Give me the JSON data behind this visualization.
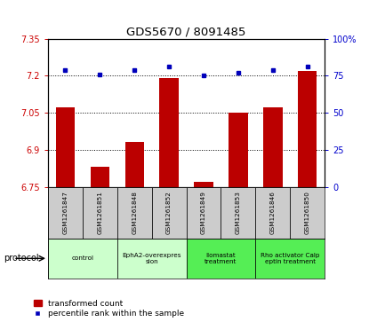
{
  "title": "GDS5670 / 8091485",
  "samples": [
    "GSM1261847",
    "GSM1261851",
    "GSM1261848",
    "GSM1261852",
    "GSM1261849",
    "GSM1261853",
    "GSM1261846",
    "GSM1261850"
  ],
  "bar_values": [
    7.07,
    6.83,
    6.93,
    7.19,
    6.77,
    7.05,
    7.07,
    7.22
  ],
  "dot_values": [
    79,
    76,
    79,
    81,
    75,
    77,
    79,
    81
  ],
  "ylim_left": [
    6.75,
    7.35
  ],
  "ylim_right": [
    0,
    100
  ],
  "yticks_left": [
    6.75,
    6.9,
    7.05,
    7.2,
    7.35
  ],
  "yticks_right": [
    0,
    25,
    50,
    75,
    100
  ],
  "ytick_labels_left": [
    "6.75",
    "6.9",
    "7.05",
    "7.2",
    "7.35"
  ],
  "ytick_labels_right": [
    "0",
    "25",
    "50",
    "75",
    "100%"
  ],
  "bar_color": "#bb0000",
  "dot_color": "#0000bb",
  "bar_bottom": 6.75,
  "dot_y_label": "percentile rank within the sample",
  "bar_y_label": "transformed count",
  "protocols": [
    {
      "label": "control",
      "indices": [
        0,
        1
      ],
      "color": "#ccffcc"
    },
    {
      "label": "EphA2-overexpres\nsion",
      "indices": [
        2,
        3
      ],
      "color": "#ccffcc"
    },
    {
      "label": "Ilomastat\ntreatment",
      "indices": [
        4,
        5
      ],
      "color": "#55ee55"
    },
    {
      "label": "Rho activator Calp\neptin treatment",
      "indices": [
        6,
        7
      ],
      "color": "#55ee55"
    }
  ],
  "protocol_label": "protocol",
  "sample_box_color": "#cccccc",
  "grid_color": "#000000",
  "plot_bg": "#ffffff",
  "tick_color_left": "#cc0000",
  "tick_color_right": "#0000cc",
  "legend_bar_label": "transformed count",
  "legend_dot_label": "percentile rank within the sample"
}
